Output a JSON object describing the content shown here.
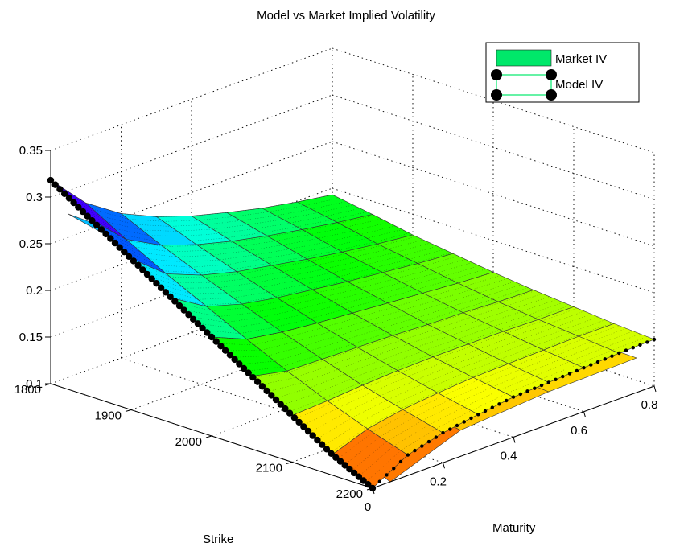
{
  "chart_data": {
    "type": "surface3d",
    "title": "Model vs Market Implied Volatility",
    "xlabel": "Strike",
    "ylabel": "Maturity",
    "zlabel": "",
    "xlim": [
      1800,
      2200
    ],
    "ylim": [
      0,
      0.8
    ],
    "zlim": [
      0.1,
      0.35
    ],
    "x_ticks": [
      1800,
      1900,
      2000,
      2100,
      2200
    ],
    "y_ticks": [
      0,
      0.2,
      0.4,
      0.6,
      0.8
    ],
    "z_ticks": [
      0.1,
      0.15,
      0.2,
      0.25,
      0.3,
      0.35
    ],
    "legend": {
      "position": "top-right",
      "entries": [
        "Market IV",
        "Model IV"
      ]
    },
    "series": [
      {
        "name": "Market IV",
        "style": "colored surface patches",
        "strikes": [
          1800,
          1850,
          1900,
          1950,
          2000,
          2050,
          2100,
          2150,
          2200
        ],
        "maturities": [
          0.05,
          0.25,
          0.5,
          0.75
        ],
        "values": [
          [
            0.275,
            0.22,
            0.185,
            0.168
          ],
          [
            0.265,
            0.21,
            0.175,
            0.16
          ],
          [
            0.24,
            0.195,
            0.168,
            0.155
          ],
          [
            0.215,
            0.175,
            0.16,
            0.15
          ],
          [
            0.19,
            0.168,
            0.152,
            0.145
          ],
          [
            0.165,
            0.14,
            0.148,
            0.142
          ],
          [
            0.14,
            0.145,
            0.142,
            0.14
          ],
          [
            0.12,
            0.135,
            0.138,
            0.138
          ],
          [
            0.1,
            0.128,
            0.135,
            0.137
          ]
        ]
      },
      {
        "name": "Model IV",
        "style": "dense mesh with black circle markers",
        "strikes": [
          1800,
          1850,
          1900,
          1950,
          2000,
          2050,
          2100,
          2150,
          2200
        ],
        "maturities": [
          0,
          0.1,
          0.2,
          0.3,
          0.4,
          0.5,
          0.6,
          0.7,
          0.8
        ],
        "values": [
          [
            0.318,
            0.28,
            0.255,
            0.238,
            0.225,
            0.215,
            0.206,
            0.199,
            0.193
          ],
          [
            0.29,
            0.255,
            0.235,
            0.222,
            0.212,
            0.204,
            0.197,
            0.191,
            0.186
          ],
          [
            0.262,
            0.232,
            0.217,
            0.207,
            0.2,
            0.193,
            0.187,
            0.182,
            0.178
          ],
          [
            0.234,
            0.211,
            0.2,
            0.193,
            0.188,
            0.183,
            0.179,
            0.175,
            0.172
          ],
          [
            0.206,
            0.19,
            0.184,
            0.18,
            0.177,
            0.174,
            0.171,
            0.168,
            0.166
          ],
          [
            0.178,
            0.17,
            0.169,
            0.168,
            0.167,
            0.165,
            0.164,
            0.162,
            0.161
          ],
          [
            0.15,
            0.152,
            0.155,
            0.157,
            0.158,
            0.158,
            0.158,
            0.157,
            0.157
          ],
          [
            0.122,
            0.136,
            0.143,
            0.147,
            0.15,
            0.151,
            0.152,
            0.153,
            0.153
          ],
          [
            0.1,
            0.122,
            0.132,
            0.138,
            0.143,
            0.145,
            0.147,
            0.149,
            0.15
          ]
        ]
      }
    ]
  },
  "colors": {
    "legend_market_swatch": "#00e86a",
    "legend_model_line": "#00e86a"
  }
}
